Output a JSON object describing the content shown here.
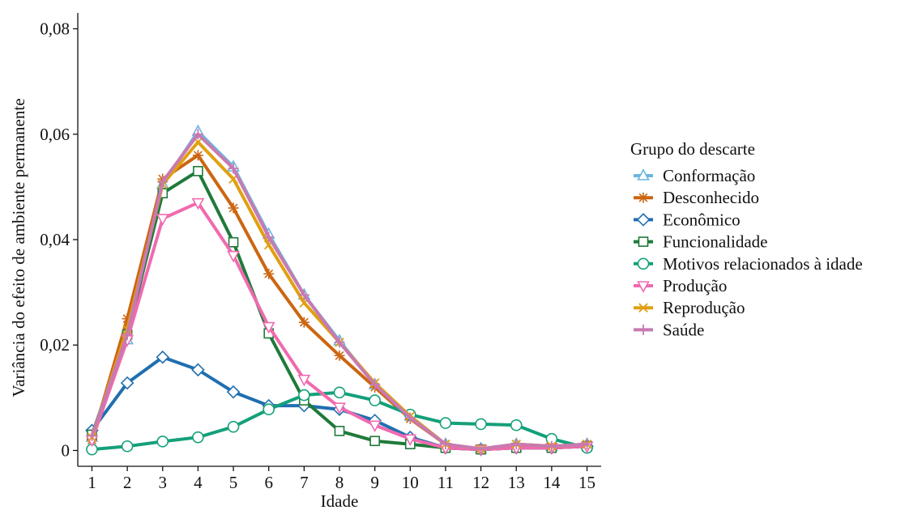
{
  "chart_data": {
    "type": "line",
    "xlabel": "Idade",
    "ylabel": "Variância do efeito de ambiente permanente",
    "x": [
      1,
      2,
      3,
      4,
      5,
      6,
      7,
      8,
      9,
      10,
      11,
      12,
      13,
      14,
      15
    ],
    "xticks": [
      "1",
      "2",
      "3",
      "4",
      "5",
      "6",
      "7",
      "8",
      "9",
      "10",
      "11",
      "12",
      "13",
      "14",
      "15"
    ],
    "yticks": [
      {
        "value": 0,
        "label": "0"
      },
      {
        "value": 0.02,
        "label": "0,02"
      },
      {
        "value": 0.04,
        "label": "0,04"
      },
      {
        "value": 0.06,
        "label": "0,06"
      },
      {
        "value": 0.08,
        "label": "0,08"
      }
    ],
    "ylim": [
      -0.003,
      0.083
    ],
    "xlim": [
      0.6,
      15.4
    ],
    "grid": false,
    "legend": {
      "title": "Grupo do descarte",
      "placement": "right"
    },
    "series": [
      {
        "name": "Conformação",
        "color": "#6bb6e0",
        "marker": "triangle-up",
        "values": [
          0.0025,
          0.021,
          0.0505,
          0.0605,
          0.0538,
          0.041,
          0.0295,
          0.0208,
          0.0125,
          0.0065,
          0.0012,
          0.0003,
          0.0012,
          0.0008,
          0.0012
        ]
      },
      {
        "name": "Desconhecido",
        "color": "#cc6611",
        "marker": "star",
        "values": [
          0.002,
          0.025,
          0.0515,
          0.056,
          0.046,
          0.0335,
          0.0243,
          0.018,
          0.012,
          0.006,
          0.0012,
          0.0002,
          0.0012,
          0.0008,
          0.0012
        ]
      },
      {
        "name": "Econômico",
        "color": "#1f6fb0",
        "marker": "diamond",
        "values": [
          0.0038,
          0.0128,
          0.0177,
          0.0153,
          0.0111,
          0.0085,
          0.0085,
          0.0078,
          0.0057,
          0.0025,
          0.0005,
          0.0002,
          0.0005,
          0.0005,
          0.0008
        ]
      },
      {
        "name": "Funcionalidade",
        "color": "#1f7a3a",
        "marker": "square",
        "values": [
          0.003,
          0.022,
          0.0488,
          0.053,
          0.0395,
          0.0222,
          0.0095,
          0.0037,
          0.0018,
          0.0012,
          0.0005,
          0.0002,
          0.0005,
          0.0005,
          0.0008
        ]
      },
      {
        "name": "Motivos relacionados à idade",
        "color": "#14a07a",
        "marker": "circle",
        "values": [
          0.0002,
          0.0008,
          0.0017,
          0.0025,
          0.0045,
          0.0078,
          0.0105,
          0.011,
          0.0095,
          0.0068,
          0.0052,
          0.005,
          0.0048,
          0.0022,
          0.0005
        ]
      },
      {
        "name": "Produção",
        "color": "#f06aaf",
        "marker": "triangle-down",
        "values": [
          0.002,
          0.021,
          0.044,
          0.047,
          0.037,
          0.0235,
          0.0135,
          0.0082,
          0.0048,
          0.0022,
          0.0005,
          0.0002,
          0.0005,
          0.0005,
          0.0008
        ]
      },
      {
        "name": "Reprodução",
        "color": "#e0a010",
        "marker": "cross",
        "values": [
          0.0025,
          0.023,
          0.0505,
          0.0585,
          0.0515,
          0.039,
          0.028,
          0.0205,
          0.0128,
          0.0065,
          0.0012,
          0.0003,
          0.0012,
          0.0008,
          0.0012
        ]
      },
      {
        "name": "Saúde",
        "color": "#c87ab0",
        "marker": "plus",
        "values": [
          0.0028,
          0.022,
          0.051,
          0.06,
          0.0535,
          0.0405,
          0.0295,
          0.0205,
          0.0125,
          0.0062,
          0.0012,
          0.0003,
          0.0012,
          0.0008,
          0.0012
        ]
      }
    ]
  }
}
